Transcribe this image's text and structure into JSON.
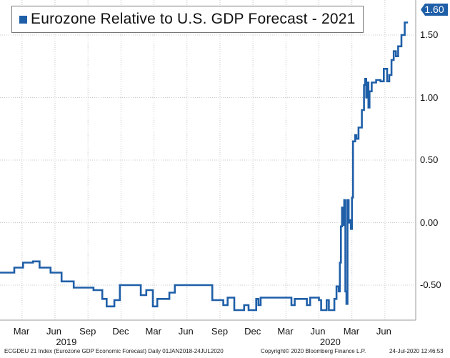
{
  "chart_data": {
    "type": "line",
    "title": "Eurozone Relative to U.S. GDP Forecast - 2021",
    "series": [
      {
        "name": "Eurozone Relative to U.S. GDP Forecast - 2021",
        "color": "#1f5fa8",
        "points": [
          {
            "t": 0.0,
            "y": -0.4
          },
          {
            "t": 1.3,
            "y": -0.4
          },
          {
            "t": 1.3,
            "y": -0.36
          },
          {
            "t": 2.1,
            "y": -0.36
          },
          {
            "t": 2.1,
            "y": -0.32
          },
          {
            "t": 3.0,
            "y": -0.32
          },
          {
            "t": 3.0,
            "y": -0.31
          },
          {
            "t": 3.6,
            "y": -0.31
          },
          {
            "t": 3.6,
            "y": -0.36
          },
          {
            "t": 4.6,
            "y": -0.36
          },
          {
            "t": 4.6,
            "y": -0.4
          },
          {
            "t": 5.6,
            "y": -0.4
          },
          {
            "t": 5.6,
            "y": -0.47
          },
          {
            "t": 6.7,
            "y": -0.47
          },
          {
            "t": 6.7,
            "y": -0.52
          },
          {
            "t": 8.5,
            "y": -0.52
          },
          {
            "t": 8.5,
            "y": -0.54
          },
          {
            "t": 9.3,
            "y": -0.54
          },
          {
            "t": 9.3,
            "y": -0.61
          },
          {
            "t": 9.7,
            "y": -0.61
          },
          {
            "t": 9.7,
            "y": -0.67
          },
          {
            "t": 10.4,
            "y": -0.67
          },
          {
            "t": 10.4,
            "y": -0.62
          },
          {
            "t": 10.9,
            "y": -0.62
          },
          {
            "t": 10.9,
            "y": -0.5
          },
          {
            "t": 12.8,
            "y": -0.5
          },
          {
            "t": 12.8,
            "y": -0.58
          },
          {
            "t": 13.3,
            "y": -0.58
          },
          {
            "t": 13.3,
            "y": -0.54
          },
          {
            "t": 13.9,
            "y": -0.54
          },
          {
            "t": 13.9,
            "y": -0.67
          },
          {
            "t": 14.3,
            "y": -0.67
          },
          {
            "t": 14.3,
            "y": -0.61
          },
          {
            "t": 15.4,
            "y": -0.61
          },
          {
            "t": 15.4,
            "y": -0.56
          },
          {
            "t": 15.9,
            "y": -0.56
          },
          {
            "t": 15.9,
            "y": -0.5
          },
          {
            "t": 19.3,
            "y": -0.5
          },
          {
            "t": 19.3,
            "y": -0.62
          },
          {
            "t": 20.3,
            "y": -0.62
          },
          {
            "t": 20.3,
            "y": -0.66
          },
          {
            "t": 20.7,
            "y": -0.66
          },
          {
            "t": 20.7,
            "y": -0.6
          },
          {
            "t": 21.3,
            "y": -0.6
          },
          {
            "t": 21.3,
            "y": -0.7
          },
          {
            "t": 22.2,
            "y": -0.7
          },
          {
            "t": 22.2,
            "y": -0.66
          },
          {
            "t": 22.6,
            "y": -0.66
          },
          {
            "t": 22.6,
            "y": -0.7
          },
          {
            "t": 23.3,
            "y": -0.7
          },
          {
            "t": 23.3,
            "y": -0.61
          },
          {
            "t": 23.5,
            "y": -0.61
          },
          {
            "t": 23.5,
            "y": -0.66
          },
          {
            "t": 23.7,
            "y": -0.66
          },
          {
            "t": 23.7,
            "y": -0.6
          },
          {
            "t": 26.5,
            "y": -0.6
          },
          {
            "t": 26.5,
            "y": -0.66
          },
          {
            "t": 26.8,
            "y": -0.66
          },
          {
            "t": 26.8,
            "y": -0.61
          },
          {
            "t": 27.9,
            "y": -0.61
          },
          {
            "t": 27.9,
            "y": -0.66
          },
          {
            "t": 28.2,
            "y": -0.66
          },
          {
            "t": 28.2,
            "y": -0.6
          },
          {
            "t": 29.0,
            "y": -0.6
          },
          {
            "t": 29.0,
            "y": -0.62
          },
          {
            "t": 29.2,
            "y": -0.62
          },
          {
            "t": 29.2,
            "y": -0.7
          },
          {
            "t": 29.7,
            "y": -0.7
          },
          {
            "t": 29.7,
            "y": -0.62
          },
          {
            "t": 29.9,
            "y": -0.62
          },
          {
            "t": 29.9,
            "y": -0.7
          },
          {
            "t": 30.4,
            "y": -0.7
          },
          {
            "t": 30.4,
            "y": -0.61
          },
          {
            "t": 30.6,
            "y": -0.61
          },
          {
            "t": 30.6,
            "y": -0.51
          },
          {
            "t": 30.8,
            "y": -0.51
          },
          {
            "t": 30.8,
            "y": -0.55
          },
          {
            "t": 30.9,
            "y": -0.55
          },
          {
            "t": 30.9,
            "y": -0.32
          },
          {
            "t": 31.0,
            "y": -0.32
          },
          {
            "t": 31.0,
            "y": -0.03
          },
          {
            "t": 31.1,
            "y": -0.03
          },
          {
            "t": 31.1,
            "y": 0.12
          },
          {
            "t": 31.2,
            "y": 0.12
          },
          {
            "t": 31.2,
            "y": -0.02
          },
          {
            "t": 31.3,
            "y": -0.02
          },
          {
            "t": 31.3,
            "y": 0.18
          },
          {
            "t": 31.4,
            "y": 0.18
          },
          {
            "t": 31.4,
            "y": -0.55
          },
          {
            "t": 31.5,
            "y": -0.55
          },
          {
            "t": 31.5,
            "y": -0.65
          },
          {
            "t": 31.6,
            "y": -0.65
          },
          {
            "t": 31.6,
            "y": 0.18
          },
          {
            "t": 31.7,
            "y": 0.18
          },
          {
            "t": 31.7,
            "y": 0.0
          },
          {
            "t": 31.8,
            "y": 0.0
          },
          {
            "t": 31.8,
            "y": 0.02
          },
          {
            "t": 31.9,
            "y": 0.02
          },
          {
            "t": 31.9,
            "y": -0.05
          },
          {
            "t": 32.0,
            "y": -0.05
          },
          {
            "t": 32.0,
            "y": 0.2
          },
          {
            "t": 32.1,
            "y": 0.2
          },
          {
            "t": 32.1,
            "y": 0.65
          },
          {
            "t": 32.3,
            "y": 0.65
          },
          {
            "t": 32.3,
            "y": 0.7
          },
          {
            "t": 32.4,
            "y": 0.7
          },
          {
            "t": 32.4,
            "y": 0.67
          },
          {
            "t": 32.6,
            "y": 0.67
          },
          {
            "t": 32.6,
            "y": 0.76
          },
          {
            "t": 32.9,
            "y": 0.76
          },
          {
            "t": 32.9,
            "y": 0.9
          },
          {
            "t": 33.1,
            "y": 0.9
          },
          {
            "t": 33.1,
            "y": 1.1
          },
          {
            "t": 33.2,
            "y": 1.1
          },
          {
            "t": 33.2,
            "y": 1.15
          },
          {
            "t": 33.3,
            "y": 1.15
          },
          {
            "t": 33.3,
            "y": 1.0
          },
          {
            "t": 33.4,
            "y": 1.0
          },
          {
            "t": 33.4,
            "y": 1.12
          },
          {
            "t": 33.5,
            "y": 1.12
          },
          {
            "t": 33.5,
            "y": 0.92
          },
          {
            "t": 33.6,
            "y": 0.92
          },
          {
            "t": 33.6,
            "y": 1.05
          },
          {
            "t": 33.8,
            "y": 1.05
          },
          {
            "t": 33.8,
            "y": 1.12
          },
          {
            "t": 34.2,
            "y": 1.12
          },
          {
            "t": 34.2,
            "y": 1.14
          },
          {
            "t": 34.6,
            "y": 1.14
          },
          {
            "t": 34.6,
            "y": 1.13
          },
          {
            "t": 34.9,
            "y": 1.13
          },
          {
            "t": 34.9,
            "y": 1.23
          },
          {
            "t": 35.2,
            "y": 1.23
          },
          {
            "t": 35.2,
            "y": 1.13
          },
          {
            "t": 35.4,
            "y": 1.13
          },
          {
            "t": 35.4,
            "y": 1.18
          },
          {
            "t": 35.6,
            "y": 1.18
          },
          {
            "t": 35.6,
            "y": 1.3
          },
          {
            "t": 35.8,
            "y": 1.3
          },
          {
            "t": 35.8,
            "y": 1.37
          },
          {
            "t": 36.0,
            "y": 1.37
          },
          {
            "t": 36.0,
            "y": 1.33
          },
          {
            "t": 36.2,
            "y": 1.33
          },
          {
            "t": 36.2,
            "y": 1.41
          },
          {
            "t": 36.5,
            "y": 1.41
          },
          {
            "t": 36.5,
            "y": 1.5
          },
          {
            "t": 36.8,
            "y": 1.5
          },
          {
            "t": 36.8,
            "y": 1.6
          },
          {
            "t": 37.1,
            "y": 1.6
          }
        ]
      }
    ],
    "ylim": [
      -0.78,
      1.78
    ],
    "xlim": [
      0,
      37.8
    ],
    "x_unit": "months since Jan 2018",
    "yticks": [
      {
        "v": 1.5,
        "label": "1.50"
      },
      {
        "v": 1.0,
        "label": "1.00"
      },
      {
        "v": 0.5,
        "label": "0.50"
      },
      {
        "v": 0.0,
        "label": "0.00"
      },
      {
        "v": -0.5,
        "label": "-0.50"
      }
    ],
    "xticks": [
      {
        "t": 2.0,
        "label": "Mar"
      },
      {
        "t": 5.0,
        "label": "Jun"
      },
      {
        "t": 8.0,
        "label": "Sep"
      },
      {
        "t": 11.0,
        "label": "Dec"
      },
      {
        "t": 14.0,
        "label": "Mar"
      },
      {
        "t": 17.0,
        "label": "Jun"
      },
      {
        "t": 20.0,
        "label": "Sep"
      },
      {
        "t": 23.0,
        "label": "Dec"
      },
      {
        "t": 26.0,
        "label": "Mar"
      },
      {
        "t": 29.0,
        "label": "Jun"
      },
      {
        "t": 32.0,
        "label": "Mar"
      },
      {
        "t": 35.0,
        "label": "Jun"
      }
    ],
    "year_labels": [
      {
        "t": 6.0,
        "label": "2019"
      },
      {
        "t": 30.0,
        "label": "2020"
      }
    ],
    "last_value": {
      "value": 1.6,
      "label": "1.60"
    },
    "grid": true,
    "legend": "top-left"
  },
  "footer": {
    "left": "ECGDEU 21 Index (Eurozone GDP Economic Forecast)  Daily 01JAN2018-24JUL2020",
    "center": "Copyright© 2020 Bloomberg Finance L.P.",
    "right": "24-Jul-2020 12:46:53"
  }
}
